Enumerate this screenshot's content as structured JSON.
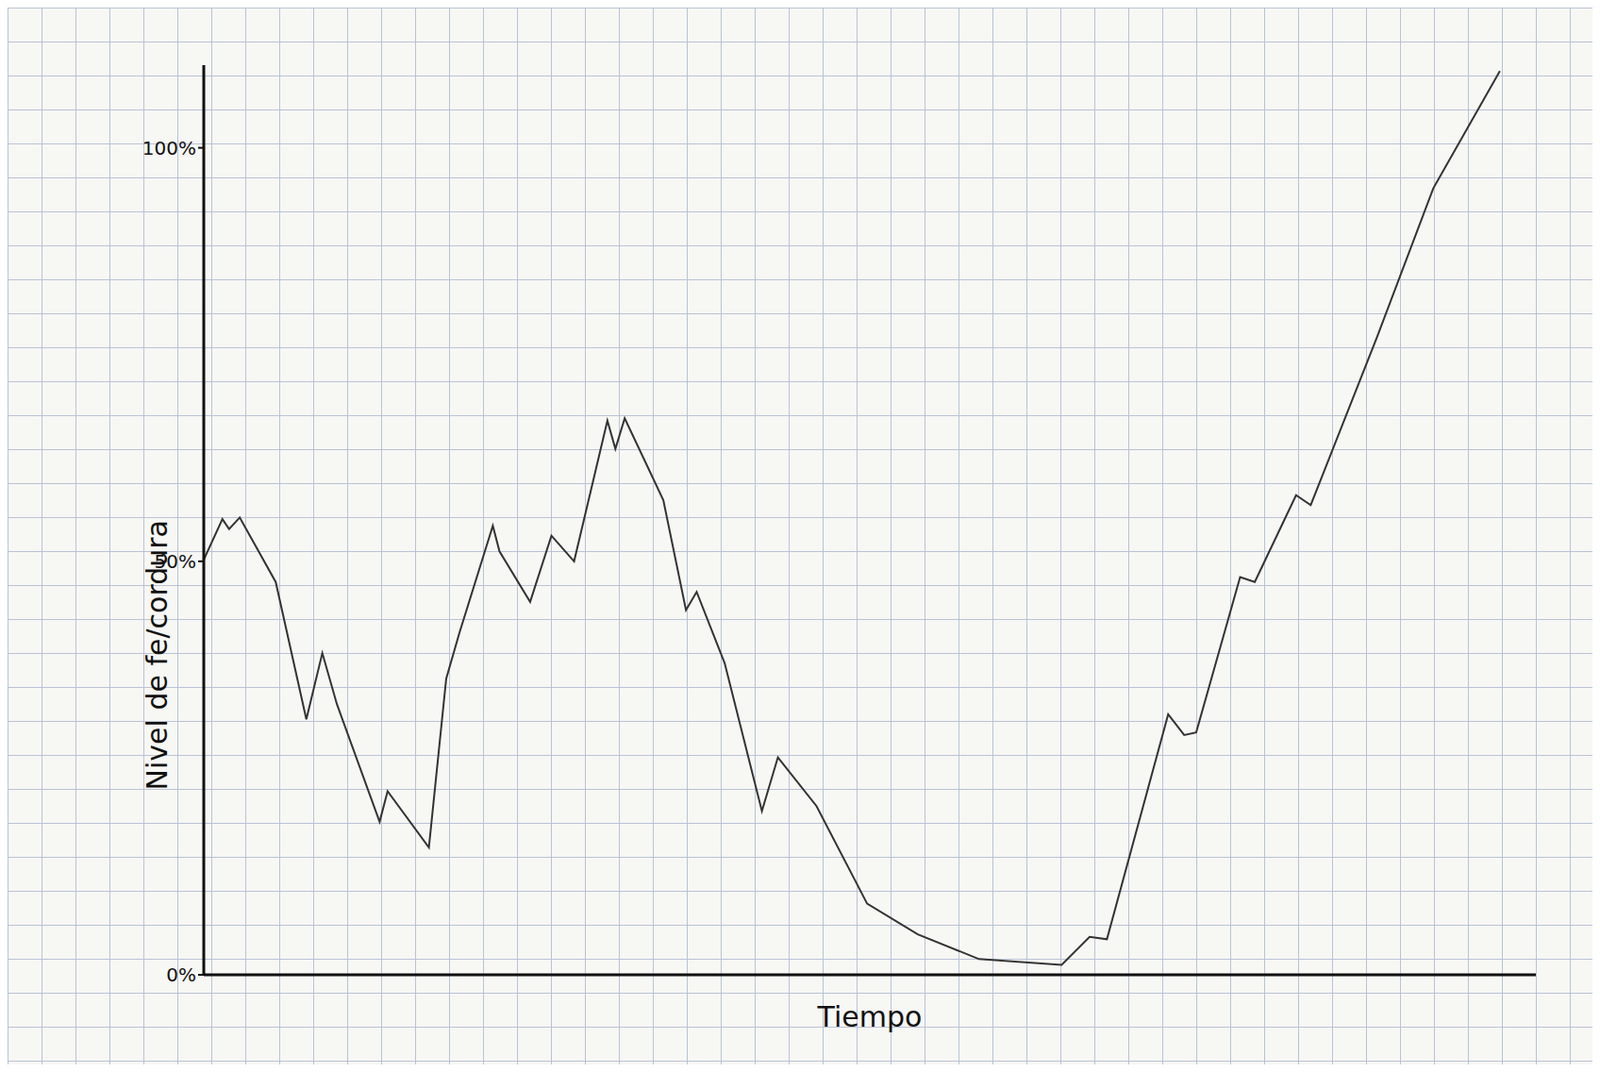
{
  "chart_data": {
    "type": "line",
    "x_label": "Tiempo",
    "y_label": "Nivel de fe/cordura",
    "x": [
      0,
      1.4,
      1.9,
      2.7,
      5.4,
      7.7,
      8.9,
      10.0,
      13.2,
      13.8,
      16.9,
      18.2,
      19.2,
      21.7,
      22.2,
      24.5,
      26.1,
      27.8,
      30.3,
      30.9,
      31.6,
      34.5,
      36.2,
      37.0,
      39.1,
      41.9,
      43.1,
      46.0,
      49.8,
      53.6,
      58.2,
      64.4,
      66.5,
      67.8,
      72.4,
      73.6,
      74.5,
      77.8,
      78.9,
      82.0,
      83.1,
      88.1,
      92.3,
      97.3
    ],
    "values": [
      50.2,
      55.1,
      53.9,
      55.3,
      47.5,
      30.9,
      38.9,
      32.7,
      18.5,
      22.2,
      15.4,
      35.8,
      41.4,
      54.3,
      51.2,
      45.1,
      53.1,
      50.0,
      67.0,
      63.6,
      67.3,
      57.4,
      44.1,
      46.3,
      37.7,
      19.8,
      26.3,
      20.4,
      8.6,
      4.9,
      1.9,
      1.2,
      4.6,
      4.3,
      31.5,
      29.0,
      29.3,
      48.1,
      47.5,
      58.0,
      56.8,
      77.2,
      95.1,
      109.3
    ],
    "color": "#333333",
    "xlim": [
      0,
      100
    ],
    "ylim": [
      0,
      110
    ],
    "yticks": [
      {
        "value": 0,
        "label": "0%"
      },
      {
        "value": 50,
        "label": "50%"
      },
      {
        "value": 100,
        "label": "100%"
      }
    ],
    "tick_labels": "y"
  }
}
